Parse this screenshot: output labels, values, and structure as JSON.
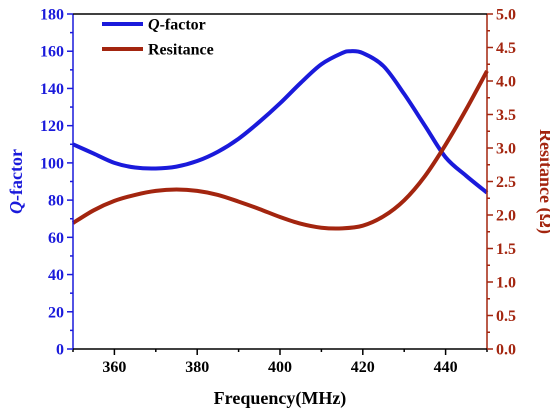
{
  "colors": {
    "q_factor": "#1a1adb",
    "resistance": "#a3250f",
    "axis_black": "#000000"
  },
  "chart_data": {
    "type": "line",
    "xlabel": "Frequency(MHz)",
    "xlim": [
      350,
      450
    ],
    "x_ticks": [
      360,
      380,
      400,
      420,
      440
    ],
    "y_left": {
      "label_italic": "Q",
      "label_rest": "-factor",
      "lim": [
        0,
        180
      ],
      "ticks": [
        0,
        20,
        40,
        60,
        80,
        100,
        120,
        140,
        160,
        180
      ]
    },
    "y_right": {
      "label": "Resitance (Ω)",
      "lim": [
        0.0,
        5.0
      ],
      "ticks": [
        "0.0",
        "0.5",
        "1.0",
        "1.5",
        "2.0",
        "2.5",
        "3.0",
        "3.5",
        "4.0",
        "4.5",
        "5.0"
      ]
    },
    "legend": {
      "placement": "top-left",
      "entries": [
        {
          "italic": "Q",
          "rest": "-factor"
        },
        {
          "italic": "",
          "rest": "Resitance"
        }
      ]
    },
    "series": [
      {
        "name": "Q-factor",
        "axis": "left",
        "x": [
          350,
          355,
          360,
          365,
          370,
          375,
          380,
          385,
          390,
          395,
          400,
          405,
          410,
          415,
          417,
          420,
          425,
          430,
          435,
          440,
          445,
          450
        ],
        "values": [
          110,
          105,
          100,
          97.5,
          97,
          98,
          101,
          106,
          113,
          122,
          132,
          143,
          153,
          159,
          160,
          159,
          152,
          137,
          120,
          103,
          93,
          84
        ]
      },
      {
        "name": "Resitance",
        "axis": "right",
        "x": [
          350,
          355,
          360,
          365,
          370,
          375,
          380,
          385,
          390,
          395,
          400,
          405,
          410,
          415,
          420,
          425,
          430,
          435,
          440,
          445,
          450
        ],
        "values": [
          1.88,
          2.07,
          2.21,
          2.3,
          2.36,
          2.38,
          2.36,
          2.3,
          2.2,
          2.09,
          1.97,
          1.87,
          1.81,
          1.8,
          1.84,
          1.98,
          2.22,
          2.58,
          3.05,
          3.58,
          4.15
        ]
      }
    ]
  }
}
